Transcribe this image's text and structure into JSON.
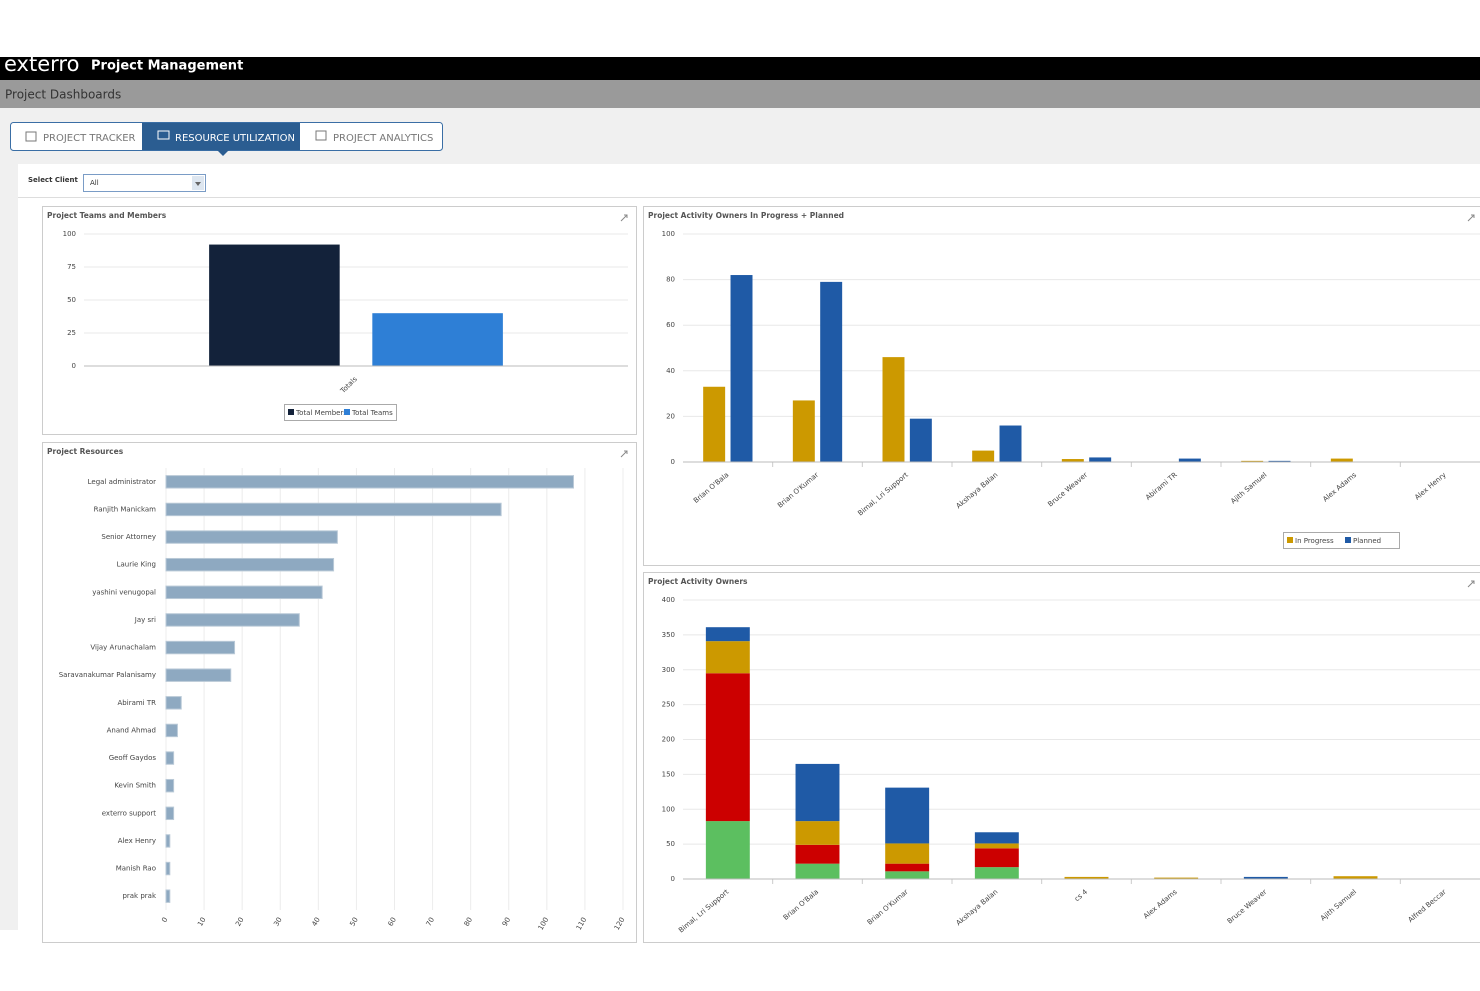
{
  "header": {
    "logo": "exterro",
    "app_title": "Project Management",
    "breadcrumb": "Project Dashboards"
  },
  "tabs": [
    "PROJECT TRACKER",
    "RESOURCE UTILIZATION",
    "PROJECT ANALYTICS"
  ],
  "filter": {
    "label": "Select Client",
    "value": "All"
  },
  "chart_data": [
    {
      "type": "bar",
      "title": "Project Teams and Members",
      "categories": [
        "Totals"
      ],
      "series": [
        {
          "name": "Total Members",
          "color": "#13223a",
          "values": [
            92
          ]
        },
        {
          "name": "Total Teams",
          "color": "#2e7fd6",
          "values": [
            40
          ]
        }
      ],
      "ylim": [
        0,
        100
      ],
      "yticks": [
        0,
        25,
        50,
        75,
        100
      ],
      "grid": true
    },
    {
      "type": "bar",
      "title": "Project Activity Owners In Progress + Planned",
      "categories": [
        "Brian O'Bala",
        "Brian O'Kumar",
        "Bimal, Lri Support",
        "Akshaya Balan",
        "Bruce Weaver",
        "Abirami TR",
        "Ajith Samuel",
        "Alex Adams",
        "Alex Henry"
      ],
      "series": [
        {
          "name": "In Progress",
          "color": "#cc9900",
          "values": [
            33,
            27,
            46,
            5,
            1.3,
            0,
            0.5,
            1.5,
            0
          ]
        },
        {
          "name": "Planned",
          "color": "#1f5aa6",
          "values": [
            82,
            79,
            19,
            16,
            2,
            1.5,
            0.5,
            0,
            0
          ]
        }
      ],
      "ylim": [
        0,
        100
      ],
      "yticks": [
        0,
        20,
        40,
        60,
        80,
        100
      ],
      "grid": true
    },
    {
      "type": "barh",
      "title": "Project Resources",
      "categories": [
        "Legal administrator",
        "Ranjith Manickam",
        "Senior Attorney",
        "Laurie King",
        "yashini venugopal",
        "Jay sri",
        "Vijay Arunachalam",
        "Saravanakumar Palanisamy",
        "Abirami TR",
        "Anand Ahmad",
        "Geoff Gaydos",
        "Kevin Smith",
        "exterro support",
        "Alex Henry",
        "Manish Rao",
        "prak prak"
      ],
      "values": [
        107,
        88,
        45,
        44,
        41,
        35,
        18,
        17,
        4,
        3,
        2,
        2,
        2,
        1,
        1,
        1
      ],
      "color": "#8ea9c1",
      "xlim": [
        0,
        120
      ],
      "xticks": [
        0,
        10,
        20,
        30,
        40,
        50,
        60,
        70,
        80,
        90,
        100,
        110,
        120
      ],
      "grid": true
    },
    {
      "type": "stacked",
      "title": "Project Activity Owners",
      "categories": [
        "Bimal, Lri Support",
        "Brian O'Bala",
        "Brian O'Kumar",
        "Akshaya Balan",
        "cs 4",
        "Alex Adams",
        "Bruce Weaver",
        "Ajith Samuel",
        "Alfred Beccar"
      ],
      "series": [
        {
          "color": "#5cbf60",
          "values": [
            83,
            22,
            11,
            17,
            0,
            0,
            0,
            0,
            0
          ]
        },
        {
          "color": "#cc0000",
          "values": [
            212,
            27,
            11,
            27,
            0,
            0,
            0,
            0,
            0
          ]
        },
        {
          "color": "#cc9900",
          "values": [
            46,
            34,
            29,
            7,
            3,
            2,
            0,
            4,
            0
          ]
        },
        {
          "color": "#1f5aa6",
          "values": [
            20,
            82,
            80,
            16,
            0,
            0,
            3,
            0,
            0
          ]
        }
      ],
      "ylim": [
        0,
        400
      ],
      "yticks": [
        0,
        50,
        100,
        150,
        200,
        250,
        300,
        350,
        400
      ],
      "grid": true
    }
  ]
}
